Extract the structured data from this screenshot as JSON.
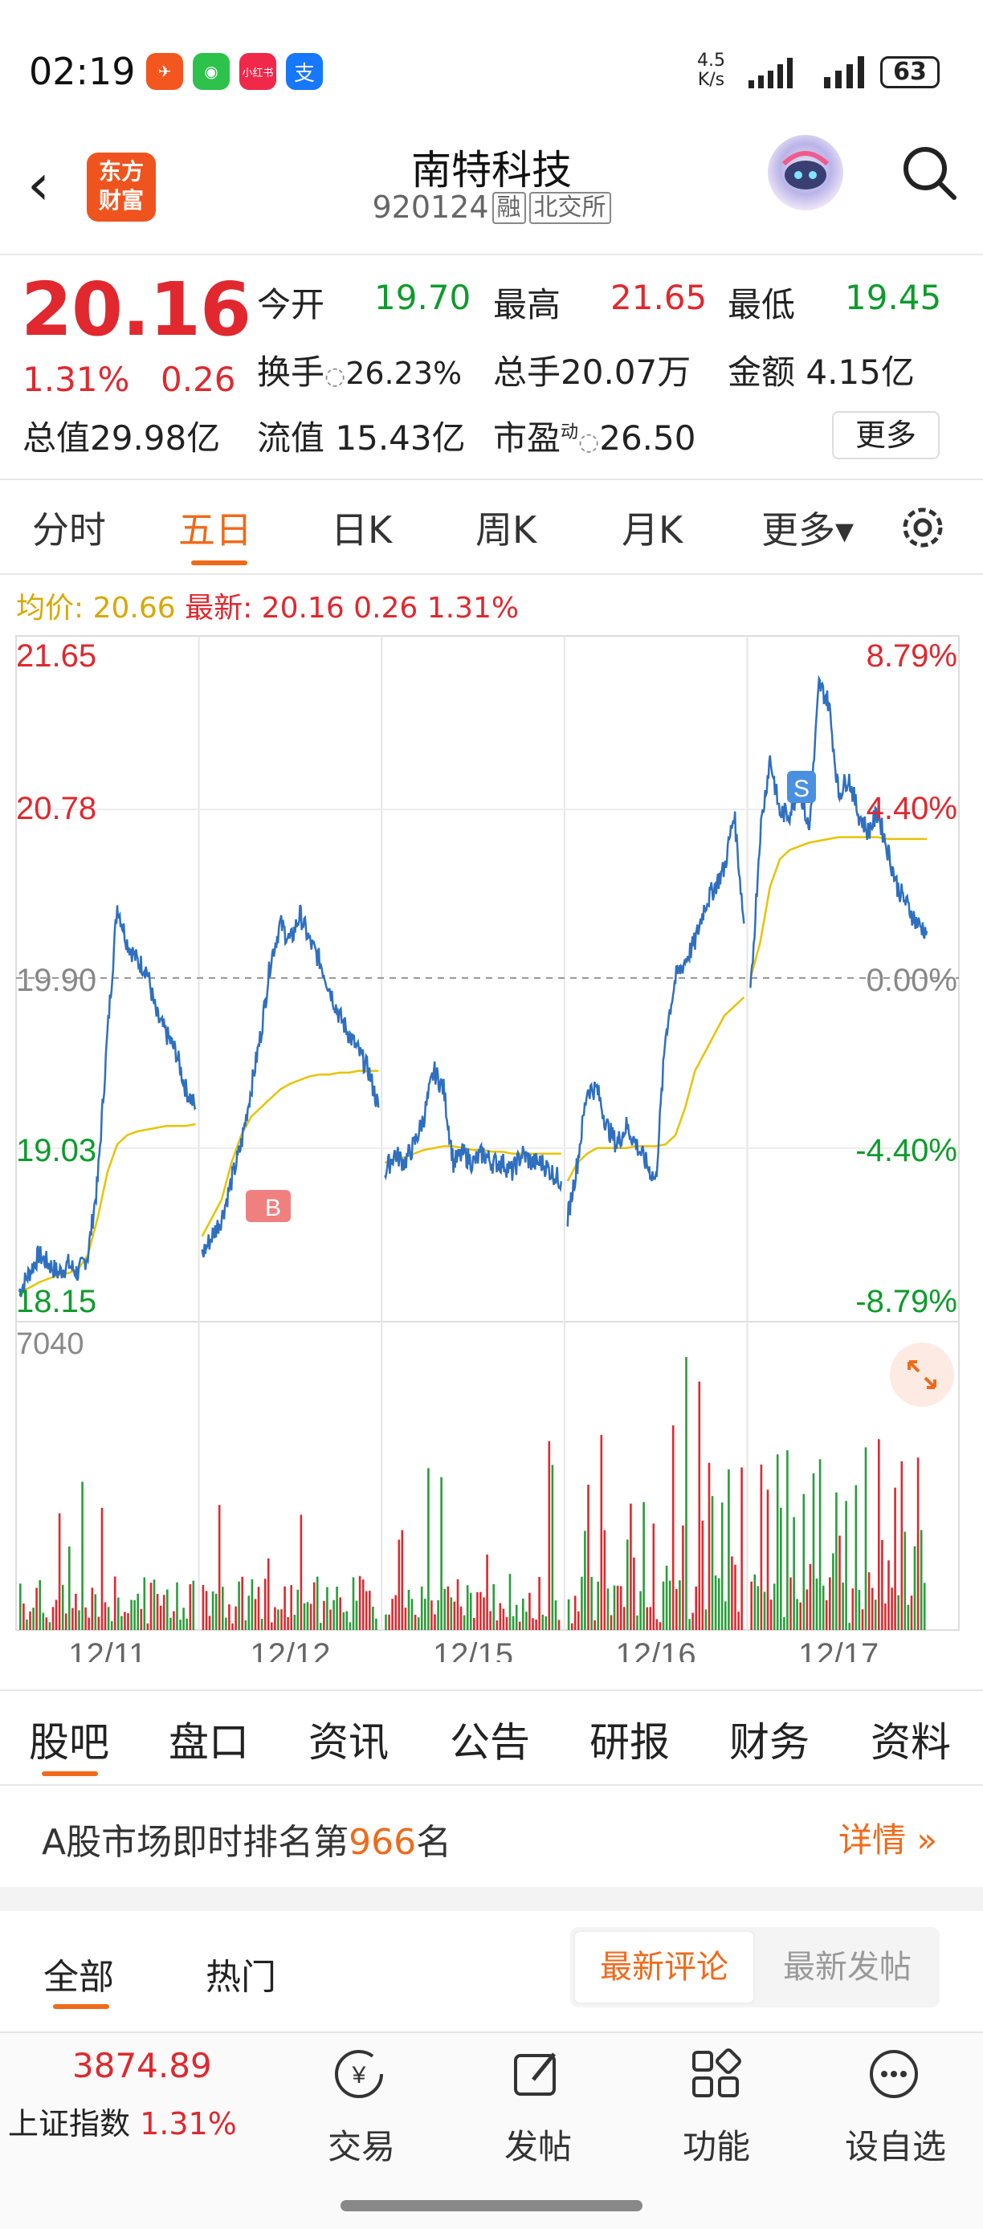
{
  "status": {
    "time": "02:19",
    "net_top": "4.5",
    "net_bottom": "K/s",
    "battery": "63",
    "apps": [
      {
        "icon": "feishu-icon",
        "color": "#f4561f",
        "label": "✈"
      },
      {
        "icon": "wechat-icon",
        "color": "#2cc24c",
        "label": "微"
      },
      {
        "icon": "xiaohongshu-icon",
        "color": "#f0284a",
        "label": "小红书"
      },
      {
        "icon": "alipay-icon",
        "color": "#1677ff",
        "label": "支"
      }
    ]
  },
  "header": {
    "logo_line1": "东方",
    "logo_line2": "财富",
    "name": "南特科技",
    "code": "920124",
    "tag1": "融",
    "tag2": "北交所"
  },
  "quote": {
    "price": "20.16",
    "change_pct": "1.31%",
    "change": "0.26",
    "row1": [
      {
        "label": "今开",
        "value": "19.70",
        "color": "green"
      },
      {
        "label": "最高",
        "value": "21.65",
        "color": "red"
      },
      {
        "label": "最低",
        "value": "19.45",
        "color": "green"
      }
    ],
    "turnover_label": "换手",
    "turnover": "26.23%",
    "volume_label": "总手",
    "volume": "20.07万",
    "amount_label": "金额",
    "amount": "4.15亿",
    "mcap_label": "总值",
    "mcap": "29.98亿",
    "float_label": "流值",
    "float": "15.43亿",
    "pe_label": "市盈",
    "pe_sup": "动",
    "pe": "26.50",
    "more": "更多"
  },
  "period_tabs": [
    "分时",
    "五日",
    "日K",
    "周K",
    "月K",
    "更多▾"
  ],
  "avg_label": "均价: 20.66",
  "latest_label": "最新: 20.16 0.26 1.31%",
  "chart_data": {
    "type": "line",
    "y_left_ticks": [
      "21.65",
      "20.78",
      "19.90",
      "19.03",
      "18.15"
    ],
    "y_right_ticks": [
      "8.79%",
      "4.40%",
      "0.00%",
      "-4.40%",
      "-8.79%"
    ],
    "ylim": [
      18.15,
      21.65
    ],
    "x_labels": [
      "12/11",
      "12/12",
      "12/15",
      "12/16",
      "12/17"
    ],
    "volume_max_label": "7040",
    "marker_s": "S",
    "marker_b": "B",
    "days": [
      {
        "price": [
          18.2,
          18.3,
          18.4,
          18.35,
          18.3,
          18.35,
          18.3,
          18.4,
          18.8,
          19.6,
          20.3,
          20.1,
          20.0,
          19.95,
          19.7,
          19.6,
          19.5,
          19.3,
          19.2
        ],
        "avg": [
          18.2,
          18.22,
          18.25,
          18.27,
          18.29,
          18.3,
          18.32,
          18.4,
          18.6,
          18.85,
          19.0,
          19.05,
          19.07,
          19.08,
          19.09,
          19.1,
          19.1,
          19.1,
          19.11
        ]
      },
      {
        "price": [
          18.4,
          18.5,
          18.6,
          18.8,
          19.0,
          19.3,
          19.6,
          20.0,
          20.2,
          20.1,
          20.25,
          20.1,
          20.0,
          19.85,
          19.7,
          19.6,
          19.5,
          19.4,
          19.2
        ],
        "avg": [
          18.5,
          18.6,
          18.7,
          18.9,
          19.05,
          19.15,
          19.2,
          19.25,
          19.3,
          19.33,
          19.35,
          19.37,
          19.38,
          19.38,
          19.39,
          19.39,
          19.4,
          19.4,
          19.4
        ]
      },
      {
        "price": [
          18.85,
          18.95,
          18.9,
          19.0,
          19.15,
          19.4,
          19.3,
          18.9,
          18.95,
          18.9,
          18.95,
          18.9,
          18.9,
          18.85,
          18.95,
          18.9,
          18.9,
          18.85,
          18.8
        ],
        "avg": [
          18.9,
          18.92,
          18.93,
          18.95,
          18.97,
          18.98,
          18.99,
          18.99,
          18.98,
          18.97,
          18.97,
          18.96,
          18.96,
          18.95,
          18.95,
          18.95,
          18.95,
          18.95,
          18.95
        ]
      },
      {
        "price": [
          18.6,
          18.9,
          19.3,
          19.3,
          19.1,
          19.0,
          19.1,
          19.0,
          18.9,
          18.8,
          19.6,
          19.9,
          20.0,
          20.1,
          20.3,
          20.4,
          20.5,
          20.8,
          20.2
        ],
        "avg": [
          18.8,
          18.9,
          18.95,
          18.98,
          18.98,
          18.98,
          18.98,
          18.99,
          18.99,
          18.99,
          19.0,
          19.05,
          19.2,
          19.4,
          19.5,
          19.6,
          19.7,
          19.75,
          19.8
        ]
      },
      {
        "price": [
          19.8,
          20.7,
          21.1,
          20.8,
          20.8,
          20.95,
          20.7,
          21.5,
          21.4,
          20.9,
          21.0,
          20.8,
          20.7,
          20.8,
          20.6,
          20.4,
          20.3,
          20.2,
          20.16
        ],
        "avg": [
          19.9,
          20.1,
          20.4,
          20.55,
          20.6,
          20.62,
          20.64,
          20.65,
          20.66,
          20.67,
          20.67,
          20.67,
          20.67,
          20.67,
          20.66,
          20.66,
          20.66,
          20.66,
          20.66
        ]
      }
    ]
  },
  "sub_tabs": [
    "股吧",
    "盘口",
    "资讯",
    "公告",
    "研报",
    "财务",
    "资料"
  ],
  "rank": {
    "prefix": "A股市场即时排名第",
    "number": "966",
    "suffix": "名",
    "detail": "详情"
  },
  "forum_tabs": [
    "全部",
    "热门"
  ],
  "forum_toggle": {
    "on": "最新评论",
    "off": "最新发帖"
  },
  "index": {
    "value": "3874.89",
    "name": "上证指数",
    "pct": "1.31%"
  },
  "nav": [
    {
      "icon": "trade-icon",
      "label": "交易"
    },
    {
      "icon": "compose-icon",
      "label": "发帖"
    },
    {
      "icon": "apps-icon",
      "label": "功能"
    },
    {
      "icon": "more-icon",
      "label": "设自选"
    }
  ]
}
